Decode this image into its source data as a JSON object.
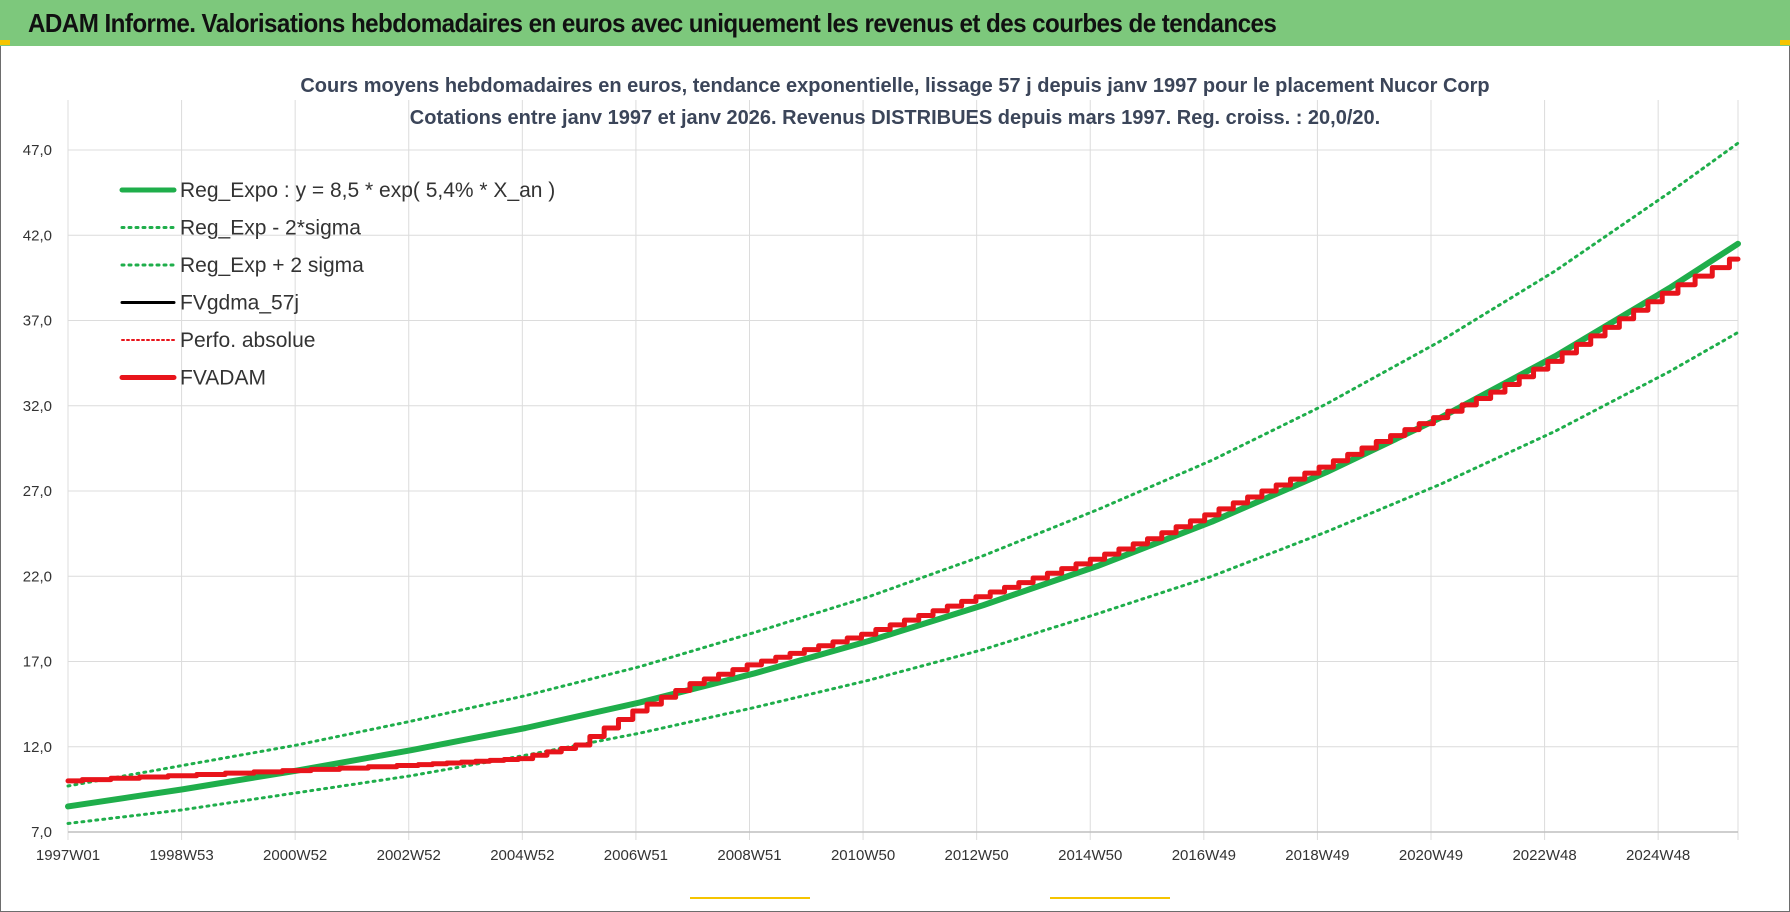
{
  "banner": {
    "title": "ADAM Informe. Valorisations hebdomadaires en euros avec uniquement les revenus et des courbes de tendances"
  },
  "colors": {
    "banner": "#7dc87c",
    "reg_expo": "#1fae4b",
    "fvadam": "#e8141b",
    "fvgdma": "#000000",
    "perfo": "#e8141b",
    "grid": "#dcdcdc"
  },
  "chart_data": {
    "type": "line",
    "title": [
      "Cours moyens hebdomadaires en euros, tendance exponentielle, lissage 57 j depuis janv 1997 pour le placement Nucor Corp",
      "Cotations entre janv 1997 et janv 2026. Revenus DISTRIBUES depuis mars 1997. Reg. croiss. : 20,0/20."
    ],
    "xlabel": "",
    "ylabel": "",
    "x_ticks": [
      "1997W01",
      "1998W53",
      "2000W52",
      "2002W52",
      "2004W52",
      "2006W51",
      "2008W51",
      "2010W50",
      "2012W50",
      "2014W50",
      "2016W49",
      "2018W49",
      "2020W49",
      "2022W48",
      "2024W48"
    ],
    "xlim": [
      1997.0,
      2026.2
    ],
    "ylim": [
      7.0,
      47.0
    ],
    "y_ticks": [
      "7,0",
      "12,0",
      "17,0",
      "22,0",
      "27,0",
      "32,0",
      "37,0",
      "42,0",
      "47,0"
    ],
    "y_tick_values": [
      7,
      12,
      17,
      22,
      27,
      32,
      37,
      42,
      47
    ],
    "grid": true,
    "legend_position": "top-left",
    "regression": {
      "a": 8.5,
      "rate": 0.054
    },
    "series": [
      {
        "name": "Reg_Expo : y = 8,5 * exp( 5,4% *  X_an )",
        "key": "reg",
        "style": "solid-thick",
        "x": [
          1997,
          1999,
          2001,
          2003,
          2005,
          2007,
          2009,
          2011,
          2013,
          2015,
          2017,
          2019,
          2021,
          2023,
          2025,
          2026.2
        ],
        "values": [
          8.5,
          9.5,
          10.6,
          11.8,
          13.1,
          14.6,
          16.3,
          18.2,
          20.3,
          22.6,
          25.2,
          28.1,
          31.3,
          34.9,
          38.9,
          41.5
        ]
      },
      {
        "name": "Reg_Exp - 2*sigma",
        "key": "lower",
        "style": "dotted-green",
        "x": [
          1997,
          1999,
          2001,
          2003,
          2005,
          2007,
          2009,
          2011,
          2013,
          2015,
          2017,
          2019,
          2021,
          2023,
          2025,
          2026.2
        ],
        "values": [
          7.5,
          8.3,
          9.3,
          10.3,
          11.5,
          12.8,
          14.3,
          15.9,
          17.7,
          19.8,
          22.0,
          24.6,
          27.4,
          30.5,
          34.0,
          36.3
        ]
      },
      {
        "name": "Reg_Exp + 2 sigma",
        "key": "upper",
        "style": "dotted-green",
        "x": [
          1997,
          1999,
          2001,
          2003,
          2005,
          2007,
          2009,
          2011,
          2013,
          2015,
          2017,
          2019,
          2021,
          2023,
          2025,
          2026.2
        ],
        "values": [
          9.7,
          10.9,
          12.1,
          13.5,
          15.0,
          16.7,
          18.7,
          20.8,
          23.2,
          25.9,
          28.8,
          32.1,
          35.8,
          39.9,
          44.5,
          47.4
        ]
      },
      {
        "name": "FVgdma_57j",
        "key": "fvgdma",
        "style": "solid-black",
        "x": [],
        "values": []
      },
      {
        "name": "Perfo. absolue",
        "key": "perfo",
        "style": "dotted-red",
        "x": [],
        "values": []
      },
      {
        "name": "FVADAM",
        "key": "fvadam",
        "style": "solid-red-thick",
        "x": [
          1997,
          1999,
          2001,
          2003,
          2004,
          2005,
          2006,
          2007,
          2008,
          2009,
          2010,
          2011,
          2012,
          2013,
          2014,
          2015,
          2016,
          2017,
          2018,
          2019,
          2020,
          2021,
          2022,
          2023,
          2024,
          2025,
          2026.2
        ],
        "values": [
          10.0,
          10.3,
          10.6,
          10.9,
          11.1,
          11.3,
          12.1,
          14.1,
          15.7,
          16.8,
          17.7,
          18.6,
          19.7,
          20.8,
          21.9,
          23.0,
          24.2,
          25.6,
          27.0,
          28.4,
          29.9,
          31.3,
          32.8,
          34.6,
          36.6,
          38.6,
          40.6
        ]
      }
    ]
  }
}
